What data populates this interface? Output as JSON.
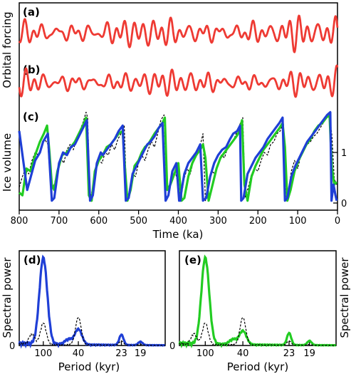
{
  "colors": {
    "forcing": "#ee3a33",
    "model_blue": "#1f3fd6",
    "model_green": "#22cc22",
    "data": "#000000"
  },
  "chart_data": [
    {
      "id": "a",
      "panel_label": "(a)",
      "type": "line",
      "description_ylabel": "Orbital forcing",
      "series": [
        {
          "color": "#ee3a33"
        }
      ]
    },
    {
      "id": "b",
      "panel_label": "(b)",
      "type": "line",
      "series": [
        {
          "color": "#ee3a33"
        }
      ]
    },
    {
      "id": "c",
      "panel_label": "(c)",
      "type": "line",
      "xlabel": "Time (ka)",
      "ylabel": "Ice volume",
      "xlim": [
        800,
        0
      ],
      "x_ticks": [
        "800",
        "700",
        "600",
        "500",
        "400",
        "300",
        "200",
        "100",
        "0"
      ],
      "y_right_ticks": [
        "0",
        "1"
      ],
      "ylim": [
        -0.15,
        1.75
      ],
      "terminations_ka": [
        718,
        622,
        532,
        432,
        338,
        242,
        132,
        15
      ],
      "series": [
        {
          "color": "#1f3fd6",
          "style": "solid",
          "x": [
            800,
            780,
            760,
            748,
            740,
            728,
            718,
            712,
            700,
            690,
            680,
            670,
            660,
            650,
            640,
            630,
            622,
            615,
            605,
            595,
            590,
            580,
            570,
            560,
            550,
            540,
            532,
            525,
            515,
            505,
            495,
            485,
            478,
            470,
            460,
            450,
            440,
            432,
            425,
            415,
            405,
            398,
            395,
            392,
            385,
            375,
            365,
            355,
            345,
            338,
            330,
            320,
            310,
            300,
            290,
            280,
            270,
            262,
            252,
            245,
            242,
            236,
            226,
            216,
            206,
            196,
            186,
            176,
            166,
            156,
            146,
            138,
            132,
            126,
            116,
            106,
            96,
            86,
            76,
            66,
            56,
            46,
            36,
            26,
            18,
            15,
            10,
            5,
            2
          ],
          "y": [
            1.3,
            0.2,
            0.75,
            0.9,
            1.1,
            1.25,
            0,
            0.05,
            0.7,
            0.9,
            0.85,
            1.0,
            1.05,
            1.2,
            1.35,
            1.5,
            0.0,
            0.1,
            0.7,
            0.9,
            0.85,
            0.95,
            1.05,
            1.15,
            1.3,
            1.4,
            0.0,
            0.05,
            0.5,
            0.65,
            0.8,
            0.95,
            1.05,
            1.1,
            1.2,
            1.35,
            1.45,
            0.0,
            0.1,
            0.55,
            0.7,
            0.0,
            0.0,
            0.2,
            0.5,
            0.7,
            0.8,
            0.9,
            1.05,
            0.0,
            0.05,
            0.45,
            0.7,
            0.85,
            0.95,
            1.0,
            1.15,
            1.25,
            1.3,
            1.4,
            0.0,
            0.05,
            0.5,
            0.65,
            0.8,
            0.9,
            1.0,
            1.15,
            1.25,
            1.35,
            1.45,
            1.55,
            0.0,
            0.05,
            0.45,
            0.65,
            0.8,
            0.95,
            1.1,
            1.2,
            1.3,
            1.4,
            1.5,
            1.6,
            1.65,
            0.0,
            0.3,
            0.1,
            0.0
          ]
        },
        {
          "color": "#22cc22",
          "style": "solid",
          "x": [
            800,
            792,
            782,
            772,
            760,
            748,
            738,
            730,
            724,
            718,
            712,
            704,
            692,
            680,
            670,
            660,
            650,
            640,
            632,
            625,
            618,
            610,
            600,
            590,
            580,
            570,
            560,
            550,
            540,
            534,
            528,
            520,
            510,
            500,
            492,
            484,
            476,
            468,
            460,
            450,
            440,
            434,
            428,
            420,
            410,
            400,
            392,
            385,
            375,
            365,
            355,
            345,
            338,
            332,
            324,
            314,
            304,
            294,
            284,
            274,
            264,
            254,
            246,
            240,
            234,
            226,
            216,
            206,
            196,
            186,
            176,
            166,
            156,
            146,
            138,
            132,
            126,
            118,
            108,
            98,
            88,
            78,
            68,
            58,
            48,
            38,
            28,
            20,
            14,
            8,
            2
          ],
          "y": [
            0.15,
            0.1,
            0.6,
            0.55,
            0.85,
            1.1,
            1.25,
            1.4,
            0.9,
            0.3,
            0.2,
            0.55,
            0.85,
            0.9,
            1.0,
            1.1,
            1.25,
            1.4,
            1.55,
            0.1,
            0.0,
            0.55,
            0.75,
            0.85,
            1.0,
            1.05,
            1.15,
            1.25,
            1.3,
            0.6,
            0.0,
            0.2,
            0.65,
            0.75,
            0.9,
            1.0,
            1.05,
            1.15,
            1.25,
            1.35,
            1.45,
            1.55,
            0.2,
            0.3,
            0.5,
            0.7,
            0.0,
            0.05,
            0.45,
            0.7,
            0.85,
            0.95,
            1.05,
            0.8,
            0.0,
            0.3,
            0.6,
            0.8,
            0.9,
            1.0,
            1.1,
            1.2,
            1.3,
            1.5,
            0.3,
            0.0,
            0.45,
            0.65,
            0.8,
            0.95,
            1.05,
            1.15,
            1.25,
            1.35,
            1.45,
            1.0,
            0.0,
            0.2,
            0.55,
            0.75,
            0.9,
            1.05,
            1.15,
            1.3,
            1.4,
            1.45,
            1.55,
            1.6,
            0.6,
            0.3,
            0.35
          ]
        },
        {
          "color": "#000000",
          "style": "dashed",
          "x": [
            800,
            792,
            784,
            776,
            768,
            760,
            752,
            744,
            736,
            728,
            720,
            712,
            704,
            696,
            688,
            680,
            672,
            664,
            656,
            648,
            640,
            632,
            628,
            622,
            616,
            608,
            600,
            592,
            584,
            576,
            568,
            560,
            552,
            544,
            536,
            530,
            524,
            516,
            508,
            500,
            492,
            484,
            476,
            468,
            460,
            452,
            444,
            436,
            430,
            424,
            416,
            408,
            400,
            394,
            386,
            378,
            370,
            362,
            354,
            346,
            338,
            332,
            324,
            316,
            308,
            300,
            292,
            284,
            276,
            268,
            260,
            252,
            244,
            238,
            232,
            224,
            216,
            208,
            200,
            192,
            184,
            176,
            168,
            160,
            152,
            144,
            136,
            130,
            124,
            116,
            108,
            100,
            92,
            84,
            76,
            68,
            60,
            52,
            44,
            36,
            28,
            20,
            14,
            8,
            2
          ],
          "y": [
            0.25,
            0.45,
            0.6,
            0.5,
            0.75,
            0.9,
            0.85,
            1.0,
            1.15,
            1.05,
            0.15,
            0.3,
            0.55,
            0.8,
            0.7,
            0.95,
            1.05,
            0.95,
            1.15,
            1.3,
            1.45,
            1.65,
            1.55,
            0.05,
            0.2,
            0.6,
            0.75,
            0.7,
            0.9,
            0.85,
            1.05,
            0.95,
            1.15,
            1.25,
            1.4,
            0.05,
            0.15,
            0.5,
            0.45,
            0.7,
            0.85,
            0.75,
            0.95,
            1.1,
            1.0,
            1.25,
            1.5,
            1.6,
            0.3,
            0.1,
            0.45,
            0.55,
            0.3,
            0.0,
            0.4,
            0.6,
            0.5,
            0.75,
            0.9,
            1.0,
            1.25,
            0.0,
            0.3,
            0.55,
            0.5,
            0.7,
            0.85,
            0.8,
            1.0,
            1.05,
            1.15,
            1.3,
            1.45,
            1.55,
            0.05,
            0.25,
            0.5,
            0.6,
            0.55,
            0.75,
            0.9,
            0.85,
            1.05,
            1.1,
            1.25,
            1.3,
            1.45,
            0.0,
            0.15,
            0.55,
            0.75,
            0.6,
            0.85,
            0.95,
            1.05,
            1.1,
            1.2,
            1.25,
            1.35,
            1.45,
            1.55,
            1.65,
            1.2,
            0.4,
            0.3
          ]
        }
      ]
    },
    {
      "id": "d",
      "panel_label": "(d)",
      "type": "line",
      "xlabel": "Period (kyr)",
      "ylabel": "Spectral power",
      "ylim": [
        0,
        1.05
      ],
      "x_ticks": [
        "100",
        "40",
        "23",
        "19"
      ],
      "y_ticks": [
        "0"
      ],
      "peaks": [
        {
          "period": "100",
          "model": 1.0,
          "data": 0.25
        },
        {
          "period": "40",
          "model": 0.18,
          "data": 0.32
        },
        {
          "period": "23",
          "model": 0.12,
          "data": 0.05
        },
        {
          "period": "19",
          "model": 0.04,
          "data": 0.01
        }
      ]
    },
    {
      "id": "e",
      "panel_label": "(e)",
      "type": "line",
      "xlabel": "Period (kyr)",
      "ylabel": "Spectral power",
      "ylim": [
        0,
        1.05
      ],
      "x_ticks": [
        "100",
        "40",
        "23",
        "19"
      ],
      "y_ticks": [
        "0"
      ],
      "peaks": [
        {
          "period": "100",
          "model": 1.0,
          "data": 0.25
        },
        {
          "period": "40",
          "model": 0.16,
          "data": 0.32
        },
        {
          "period": "23",
          "model": 0.14,
          "data": 0.05
        },
        {
          "period": "19",
          "model": 0.05,
          "data": 0.01
        }
      ]
    }
  ],
  "labels": {
    "orbital_forcing": "Orbital forcing",
    "ice_volume": "Ice volume",
    "time_axis": "Time (ka)",
    "period_axis_d": "Period (kyr)",
    "period_axis_e": "Period (kyr)",
    "spectral_power_left": "Spectral power",
    "spectral_power_right": "Spectral power"
  }
}
